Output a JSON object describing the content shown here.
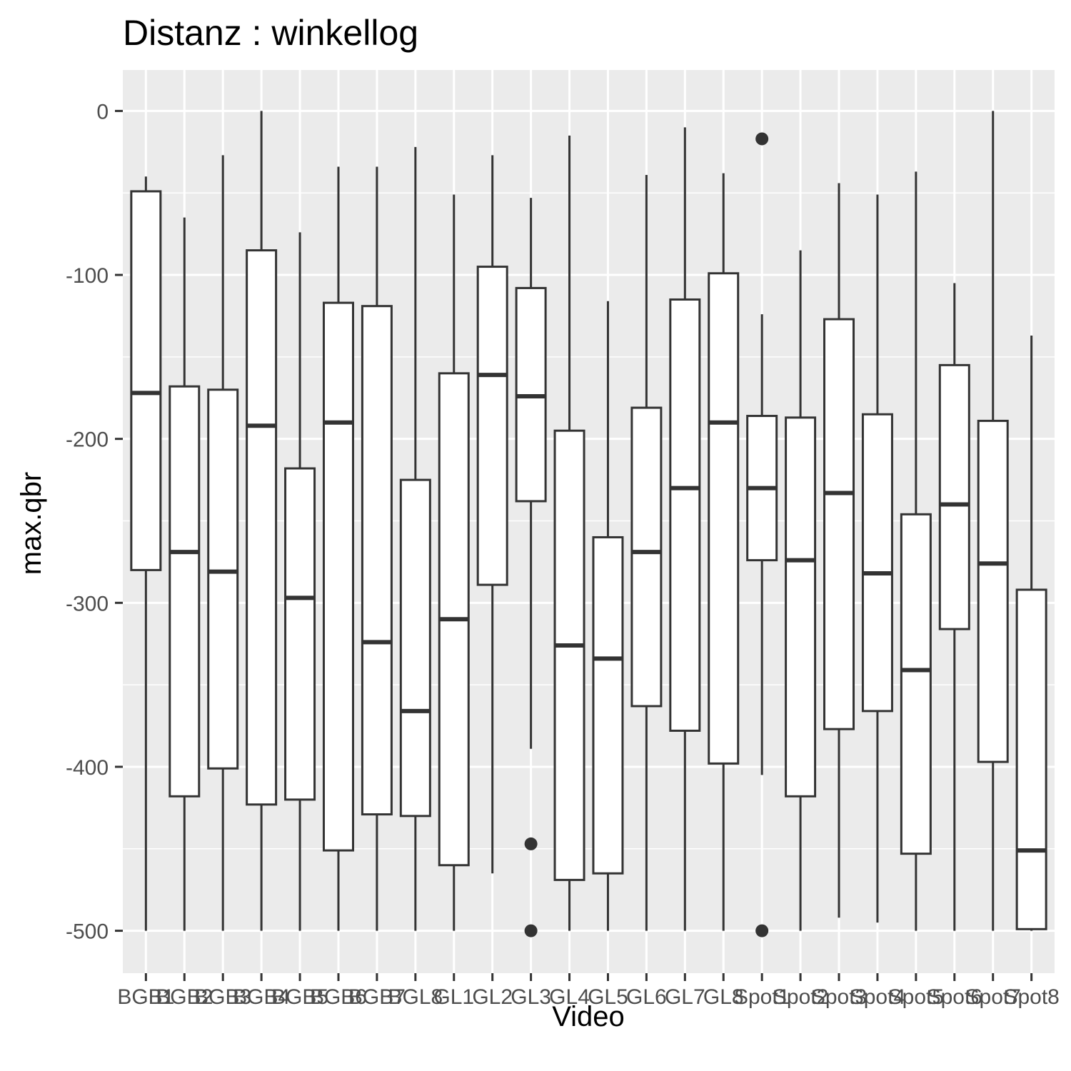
{
  "chart_data": {
    "type": "boxplot",
    "title": "Distanz : winkellog",
    "xlabel": "Video",
    "ylabel": "max.qbr",
    "ylim": [
      -525,
      25
    ],
    "yticks": [
      0,
      -100,
      -200,
      -300,
      -400,
      -500
    ],
    "grid": true,
    "legend": "none",
    "colors": {
      "panel": "#ebebeb",
      "grid": "#ffffff",
      "box_fill": "#ffffff",
      "box_line": "#333333",
      "tick_text": "#4d4d4d"
    },
    "categories": [
      "BGB1",
      "BGB2",
      "BGB3",
      "BGB4",
      "BGB5",
      "BGB6",
      "BGB7",
      "BGL8",
      "GL1",
      "GL2",
      "GL3",
      "GL4",
      "GL5",
      "GL6",
      "GL7",
      "GL8",
      "Spot1",
      "Spot2",
      "Spot3",
      "Spot4",
      "Spot5",
      "Spot6",
      "Spot7",
      "Spot8"
    ],
    "boxes": [
      {
        "lower_whisker": -500,
        "q1": -280,
        "median": -172,
        "q3": -49,
        "upper_whisker": -40,
        "outliers": []
      },
      {
        "lower_whisker": -500,
        "q1": -418,
        "median": -269,
        "q3": -168,
        "upper_whisker": -65,
        "outliers": []
      },
      {
        "lower_whisker": -500,
        "q1": -401,
        "median": -281,
        "q3": -170,
        "upper_whisker": -27,
        "outliers": []
      },
      {
        "lower_whisker": -500,
        "q1": -423,
        "median": -192,
        "q3": -85,
        "upper_whisker": 0,
        "outliers": []
      },
      {
        "lower_whisker": -500,
        "q1": -420,
        "median": -297,
        "q3": -218,
        "upper_whisker": -74,
        "outliers": []
      },
      {
        "lower_whisker": -500,
        "q1": -451,
        "median": -190,
        "q3": -117,
        "upper_whisker": -34,
        "outliers": []
      },
      {
        "lower_whisker": -500,
        "q1": -429,
        "median": -324,
        "q3": -119,
        "upper_whisker": -34,
        "outliers": []
      },
      {
        "lower_whisker": -500,
        "q1": -430,
        "median": -366,
        "q3": -225,
        "upper_whisker": -22,
        "outliers": []
      },
      {
        "lower_whisker": -500,
        "q1": -460,
        "median": -310,
        "q3": -160,
        "upper_whisker": -51,
        "outliers": []
      },
      {
        "lower_whisker": -465,
        "q1": -289,
        "median": -161,
        "q3": -95,
        "upper_whisker": -27,
        "outliers": []
      },
      {
        "lower_whisker": -389,
        "q1": -238,
        "median": -174,
        "q3": -108,
        "upper_whisker": -53,
        "outliers": [
          -447,
          -500
        ]
      },
      {
        "lower_whisker": -500,
        "q1": -469,
        "median": -326,
        "q3": -195,
        "upper_whisker": -15,
        "outliers": []
      },
      {
        "lower_whisker": -500,
        "q1": -465,
        "median": -334,
        "q3": -260,
        "upper_whisker": -116,
        "outliers": []
      },
      {
        "lower_whisker": -500,
        "q1": -363,
        "median": -269,
        "q3": -181,
        "upper_whisker": -39,
        "outliers": []
      },
      {
        "lower_whisker": -500,
        "q1": -378,
        "median": -230,
        "q3": -115,
        "upper_whisker": -10,
        "outliers": []
      },
      {
        "lower_whisker": -500,
        "q1": -398,
        "median": -190,
        "q3": -99,
        "upper_whisker": -38,
        "outliers": []
      },
      {
        "lower_whisker": -405,
        "q1": -274,
        "median": -230,
        "q3": -186,
        "upper_whisker": -124,
        "outliers": [
          -17,
          -500
        ]
      },
      {
        "lower_whisker": -500,
        "q1": -418,
        "median": -274,
        "q3": -187,
        "upper_whisker": -85,
        "outliers": []
      },
      {
        "lower_whisker": -492,
        "q1": -377,
        "median": -233,
        "q3": -127,
        "upper_whisker": -44,
        "outliers": []
      },
      {
        "lower_whisker": -495,
        "q1": -366,
        "median": -282,
        "q3": -185,
        "upper_whisker": -51,
        "outliers": []
      },
      {
        "lower_whisker": -500,
        "q1": -453,
        "median": -341,
        "q3": -246,
        "upper_whisker": -37,
        "outliers": []
      },
      {
        "lower_whisker": -500,
        "q1": -316,
        "median": -240,
        "q3": -155,
        "upper_whisker": -105,
        "outliers": []
      },
      {
        "lower_whisker": -500,
        "q1": -397,
        "median": -276,
        "q3": -189,
        "upper_whisker": 0,
        "outliers": []
      },
      {
        "lower_whisker": -500,
        "q1": -499,
        "median": -451,
        "q3": -292,
        "upper_whisker": -137,
        "outliers": []
      }
    ]
  }
}
